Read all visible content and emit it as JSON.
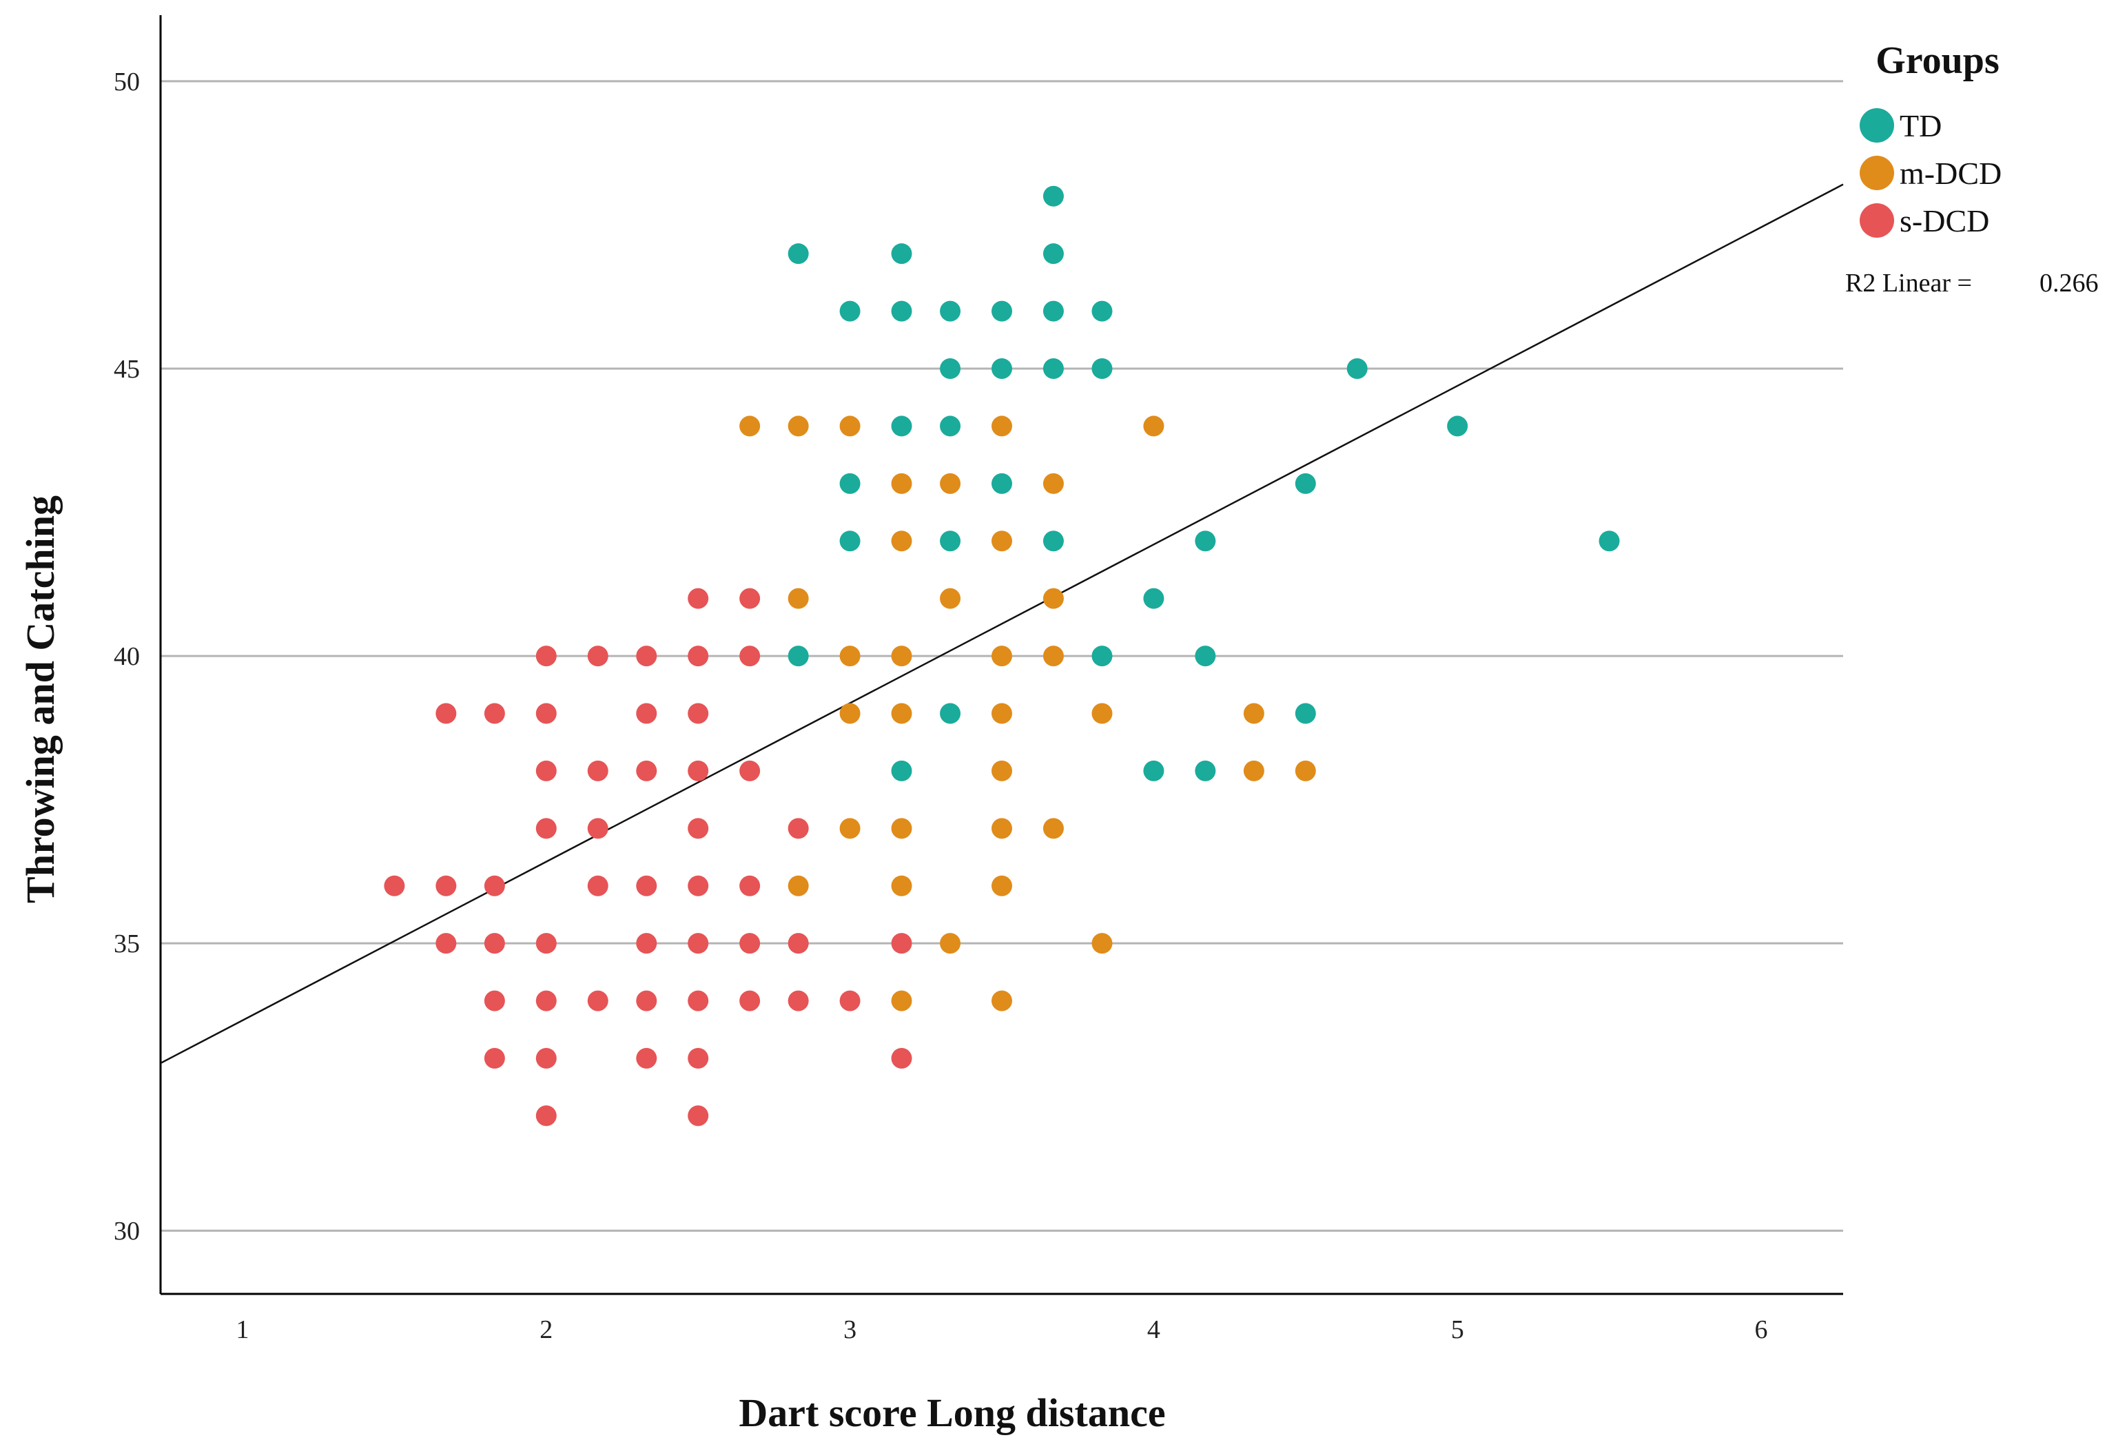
{
  "chart_data": {
    "type": "scatter",
    "title": "",
    "xlabel": "Dart score Long distance",
    "ylabel": "Throwing and Catching",
    "xlim": [
      0.73,
      6.27
    ],
    "ylim": [
      28.9,
      51.15
    ],
    "xticks": [
      "1",
      "2",
      "3",
      "4",
      "5",
      "6"
    ],
    "yticks": [
      "30",
      "35",
      "40",
      "45",
      "50"
    ],
    "grid": "horizontal",
    "legend": {
      "title": "Groups",
      "position": "top-right",
      "entries": [
        "TD",
        "m-DCD",
        "s-DCD"
      ]
    },
    "fit_line": {
      "label": "R2 Linear =",
      "r2": "0.266",
      "intercept": 30.9,
      "slope": 2.76
    },
    "series": [
      {
        "name": "TD",
        "color": "#1aab9b",
        "points": [
          [
            2.83,
            47
          ],
          [
            3.17,
            47
          ],
          [
            3.67,
            48
          ],
          [
            3.67,
            47
          ],
          [
            3.0,
            46
          ],
          [
            3.17,
            46
          ],
          [
            3.33,
            46
          ],
          [
            3.5,
            46
          ],
          [
            3.67,
            46
          ],
          [
            3.83,
            46
          ],
          [
            3.33,
            45
          ],
          [
            3.5,
            45
          ],
          [
            3.67,
            45
          ],
          [
            3.83,
            45
          ],
          [
            4.67,
            45
          ],
          [
            3.17,
            44
          ],
          [
            3.33,
            44
          ],
          [
            5.0,
            44
          ],
          [
            3.0,
            43
          ],
          [
            3.5,
            43
          ],
          [
            4.5,
            43
          ],
          [
            3.0,
            42
          ],
          [
            3.33,
            42
          ],
          [
            3.67,
            42
          ],
          [
            4.17,
            42
          ],
          [
            5.5,
            42
          ],
          [
            4.0,
            41
          ],
          [
            2.83,
            40
          ],
          [
            3.83,
            40
          ],
          [
            4.17,
            40
          ],
          [
            3.33,
            39
          ],
          [
            4.5,
            39
          ],
          [
            3.17,
            38
          ],
          [
            4.0,
            38
          ],
          [
            4.17,
            38
          ]
        ]
      },
      {
        "name": "m-DCD",
        "color": "#e08c1a",
        "points": [
          [
            2.67,
            44
          ],
          [
            2.83,
            44
          ],
          [
            3.0,
            44
          ],
          [
            3.5,
            44
          ],
          [
            4.0,
            44
          ],
          [
            3.17,
            43
          ],
          [
            3.33,
            43
          ],
          [
            3.67,
            43
          ],
          [
            3.17,
            42
          ],
          [
            3.5,
            42
          ],
          [
            2.83,
            41
          ],
          [
            3.33,
            41
          ],
          [
            3.67,
            41
          ],
          [
            3.0,
            40
          ],
          [
            3.17,
            40
          ],
          [
            3.5,
            40
          ],
          [
            3.67,
            40
          ],
          [
            3.0,
            39
          ],
          [
            3.17,
            39
          ],
          [
            3.5,
            39
          ],
          [
            3.83,
            39
          ],
          [
            4.33,
            39
          ],
          [
            3.5,
            38
          ],
          [
            4.33,
            38
          ],
          [
            4.5,
            38
          ],
          [
            3.0,
            37
          ],
          [
            3.17,
            37
          ],
          [
            3.5,
            37
          ],
          [
            3.67,
            37
          ],
          [
            2.83,
            36
          ],
          [
            3.17,
            36
          ],
          [
            3.5,
            36
          ],
          [
            3.33,
            35
          ],
          [
            3.83,
            35
          ],
          [
            3.17,
            34
          ],
          [
            3.5,
            34
          ]
        ]
      },
      {
        "name": "s-DCD",
        "color": "#e65456",
        "points": [
          [
            2.5,
            41
          ],
          [
            2.67,
            41
          ],
          [
            2.0,
            40
          ],
          [
            2.17,
            40
          ],
          [
            2.33,
            40
          ],
          [
            2.5,
            40
          ],
          [
            2.67,
            40
          ],
          [
            1.67,
            39
          ],
          [
            1.83,
            39
          ],
          [
            2.0,
            39
          ],
          [
            2.33,
            39
          ],
          [
            2.5,
            39
          ],
          [
            2.0,
            38
          ],
          [
            2.17,
            38
          ],
          [
            2.33,
            38
          ],
          [
            2.5,
            38
          ],
          [
            2.67,
            38
          ],
          [
            2.0,
            37
          ],
          [
            2.17,
            37
          ],
          [
            2.5,
            37
          ],
          [
            2.83,
            37
          ],
          [
            1.5,
            36
          ],
          [
            1.67,
            36
          ],
          [
            1.83,
            36
          ],
          [
            2.17,
            36
          ],
          [
            2.33,
            36
          ],
          [
            2.5,
            36
          ],
          [
            2.67,
            36
          ],
          [
            1.67,
            35
          ],
          [
            1.83,
            35
          ],
          [
            2.0,
            35
          ],
          [
            2.33,
            35
          ],
          [
            2.5,
            35
          ],
          [
            2.67,
            35
          ],
          [
            2.83,
            35
          ],
          [
            3.17,
            35
          ],
          [
            1.83,
            34
          ],
          [
            2.0,
            34
          ],
          [
            2.17,
            34
          ],
          [
            2.33,
            34
          ],
          [
            2.5,
            34
          ],
          [
            2.67,
            34
          ],
          [
            2.83,
            34
          ],
          [
            3.0,
            34
          ],
          [
            1.83,
            33
          ],
          [
            2.0,
            33
          ],
          [
            2.33,
            33
          ],
          [
            2.5,
            33
          ],
          [
            3.17,
            33
          ],
          [
            2.0,
            32
          ],
          [
            2.5,
            32
          ]
        ]
      }
    ]
  }
}
